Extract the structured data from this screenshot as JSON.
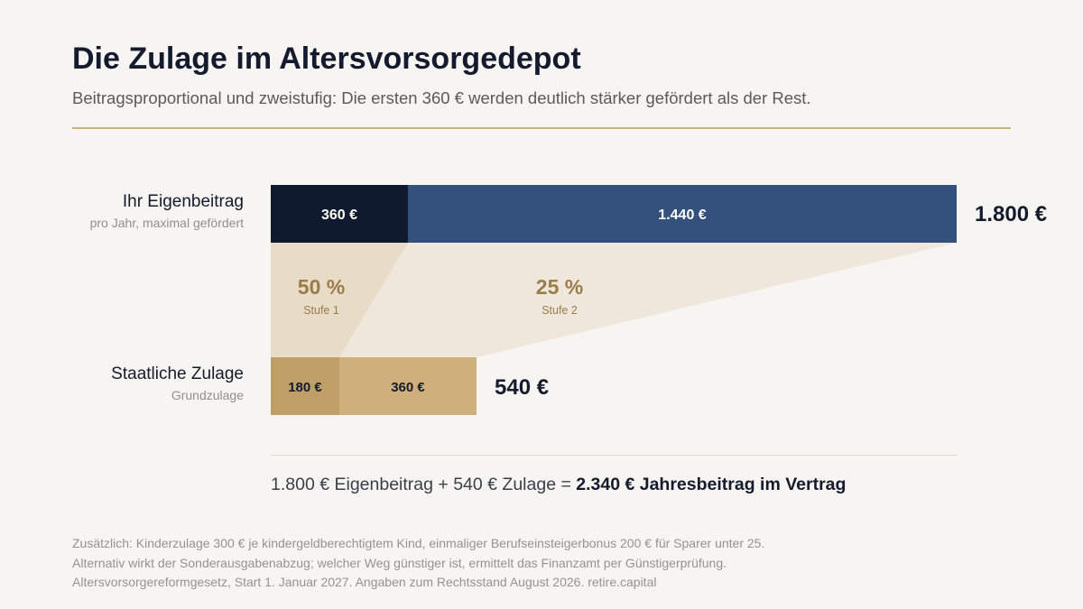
{
  "header": {
    "title": "Die Zulage im Altersvorsorgedepot",
    "subtitle": "Beitragsproportional und zweistufig: Die ersten 360 € werden deutlich stärker gefördert als der Rest."
  },
  "rows": {
    "contribution": {
      "label": "Ihr Eigenbeitrag",
      "sublabel": "pro Jahr, maximal gefördert",
      "total": "1.800 €"
    },
    "subsidy": {
      "label": "Staatliche Zulage",
      "sublabel": "Grundzulage",
      "total": "540 €"
    }
  },
  "chart_data": {
    "type": "bar",
    "title": "Die Zulage im Altersvorsorgedepot",
    "scale_max": 1800,
    "series": [
      {
        "name": "Ihr Eigenbeitrag",
        "segments": [
          {
            "value": 360,
            "label": "360 €",
            "color": "#0f1a2e"
          },
          {
            "value": 1440,
            "label": "1.440 €",
            "color": "#34507c"
          }
        ],
        "total_label": "1.800 €"
      },
      {
        "name": "Staatliche Zulage",
        "segments": [
          {
            "value": 180,
            "label": "180 €",
            "color": "#bf9e68"
          },
          {
            "value": 360,
            "label": "360 €",
            "color": "#cfb07a"
          }
        ],
        "total_label": "540 €"
      }
    ],
    "rates": [
      {
        "rate": "50 %",
        "label": "Stufe 1",
        "color": "#e8dcc8"
      },
      {
        "rate": "25 %",
        "label": "Stufe 2",
        "color": "#efe7dc"
      }
    ]
  },
  "colors": {
    "accent_gold": "#cdb182",
    "rate_text": "#9a7d4a",
    "navy": "#0f1a2e",
    "blue": "#34507c"
  },
  "equation": {
    "part1": "1.800 € Eigenbeitrag + 540 € Zulage = ",
    "result": "2.340 € Jahresbeitrag im Vertrag"
  },
  "footnotes": [
    "Zusätzlich: Kinderzulage 300 € je kindergeldberechtigtem Kind, einmaliger Berufseinsteigerbonus 200 € für Sparer unter 25.",
    "Alternativ wirkt der Sonderausgabenabzug; welcher Weg günstiger ist, ermittelt das Finanzamt per Günstigerprüfung.",
    "Altersvorsorgereformgesetz, Start 1. Januar 2027. Angaben zum Rechtsstand August 2026. retire.capital"
  ]
}
